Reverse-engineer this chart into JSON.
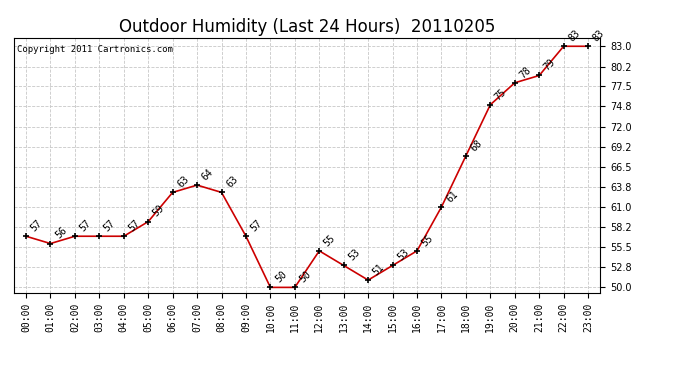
{
  "title": "Outdoor Humidity (Last 24 Hours)  20110205",
  "copyright": "Copyright 2011 Cartronics.com",
  "hours": [
    "00:00",
    "01:00",
    "02:00",
    "03:00",
    "04:00",
    "05:00",
    "06:00",
    "07:00",
    "08:00",
    "09:00",
    "10:00",
    "11:00",
    "12:00",
    "13:00",
    "14:00",
    "15:00",
    "16:00",
    "17:00",
    "18:00",
    "19:00",
    "20:00",
    "21:00",
    "22:00",
    "23:00"
  ],
  "values": [
    57,
    56,
    57,
    57,
    57,
    59,
    63,
    64,
    63,
    57,
    50,
    50,
    55,
    53,
    51,
    53,
    55,
    61,
    68,
    75,
    78,
    79,
    83,
    83
  ],
  "line_color": "#cc0000",
  "marker_color": "#000000",
  "background_color": "#ffffff",
  "grid_color": "#c8c8c8",
  "yticks": [
    50.0,
    52.8,
    55.5,
    58.2,
    61.0,
    63.8,
    66.5,
    69.2,
    72.0,
    74.8,
    77.5,
    80.2,
    83.0
  ],
  "ylim": [
    49.3,
    84.2
  ],
  "title_fontsize": 12,
  "label_fontsize": 7,
  "annotation_fontsize": 7
}
